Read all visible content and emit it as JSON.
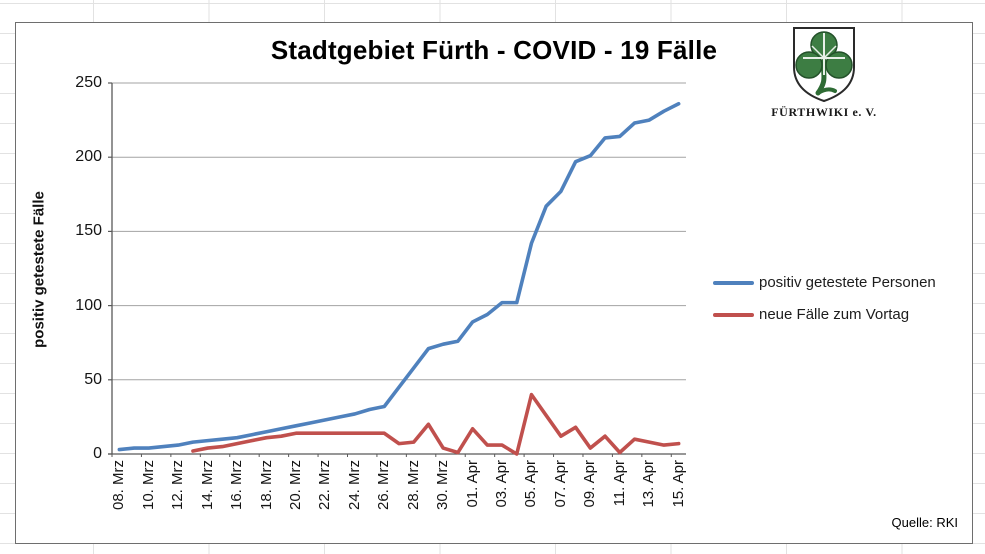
{
  "chart_data": {
    "type": "line",
    "title": "Stadtgebiet Fürth - COVID - 19 Fälle",
    "ylabel": "positiv getestete Fälle",
    "xlabel": "",
    "ylim": [
      0,
      250
    ],
    "yticks": [
      0,
      50,
      100,
      150,
      200,
      250
    ],
    "x_labels": [
      "08. Mrz",
      "10. Mrz",
      "12. Mrz",
      "14. Mrz",
      "16. Mrz",
      "18. Mrz",
      "20. Mrz",
      "22. Mrz",
      "24. Mrz",
      "26. Mrz",
      "28. Mrz",
      "30. Mrz",
      "01. Apr",
      "03. Apr",
      "05. Apr",
      "07. Apr",
      "09. Apr",
      "11. Apr",
      "13. Apr",
      "15. Apr"
    ],
    "label_every": 2,
    "n_points": 39,
    "grid": "horizontal",
    "legend_position": "right",
    "series": [
      {
        "name": "positiv getestete Personen",
        "color": "#4F81BD",
        "values": [
          3,
          4,
          4,
          5,
          6,
          8,
          9,
          10,
          11,
          13,
          15,
          17,
          19,
          21,
          23,
          25,
          27,
          30,
          32,
          45,
          58,
          71,
          74,
          76,
          89,
          94,
          102,
          102,
          142,
          167,
          177,
          197,
          201,
          213,
          214,
          223,
          225,
          231,
          236
        ]
      },
      {
        "name": "neue Fälle zum Vortag",
        "color": "#C0504D",
        "values": [
          null,
          null,
          null,
          null,
          null,
          2,
          4,
          5,
          7,
          9,
          11,
          12,
          14,
          14,
          14,
          14,
          14,
          14,
          14,
          7,
          8,
          20,
          4,
          1,
          17,
          6,
          6,
          0,
          40,
          26,
          12,
          18,
          4,
          12,
          1,
          10,
          8,
          6,
          7
        ]
      }
    ]
  },
  "source": "Quelle: RKI",
  "logo": {
    "caption": "FÜRTHWIKI e. V."
  },
  "colors": {
    "series1": "#4F81BD",
    "series2": "#C0504D",
    "gridline": "#a3a3a3",
    "axis": "#595959"
  }
}
